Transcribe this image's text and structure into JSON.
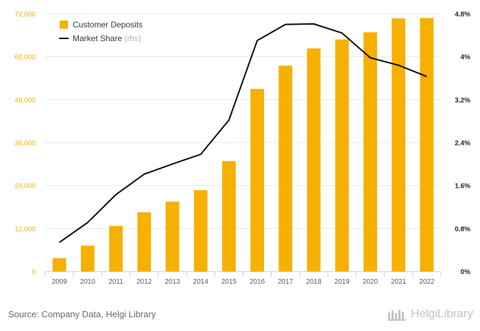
{
  "chart_data": {
    "type": "bar",
    "categories": [
      "2009",
      "2010",
      "2011",
      "2012",
      "2013",
      "2014",
      "2015",
      "2016",
      "2017",
      "2018",
      "2019",
      "2020",
      "2021",
      "2022"
    ],
    "series": [
      {
        "name": "Customer Deposits",
        "type": "bar",
        "axis": "left",
        "color": "#f5b000",
        "values": [
          3700,
          7200,
          12700,
          16500,
          19500,
          22700,
          30800,
          51000,
          57500,
          62300,
          64800,
          66800,
          70700,
          70800
        ]
      },
      {
        "name": "Market Share",
        "type": "line",
        "axis": "right",
        "color": "#000000",
        "values": [
          0.54,
          0.91,
          1.43,
          1.81,
          2.0,
          2.18,
          2.82,
          4.3,
          4.6,
          4.61,
          4.44,
          3.98,
          3.84,
          3.63
        ]
      }
    ],
    "left_axis": {
      "min": 0,
      "max": 72000,
      "ticks": [
        0,
        12000,
        24000,
        36000,
        48000,
        60000,
        72000
      ],
      "tick_labels": [
        "0",
        "12,000",
        "24,000",
        "36,000",
        "48,000",
        "60,000",
        "72,000"
      ],
      "label_color": "#f5b000"
    },
    "right_axis": {
      "min": 0,
      "max": 4.8,
      "unit": "%",
      "ticks": [
        0,
        0.8,
        1.6,
        2.4,
        3.2,
        4,
        4.8
      ],
      "tick_labels": [
        "0%",
        "0.8%",
        "1.6%",
        "2.4%",
        "3.2%",
        "4%",
        "4.8%"
      ]
    },
    "legend": {
      "position": "top-left",
      "items": [
        {
          "label": "Customer Deposits",
          "suffix": "",
          "symbol": "square",
          "color": "#f5b000"
        },
        {
          "label": "Market Share",
          "suffix": "(rhs)",
          "symbol": "line",
          "color": "#000000"
        }
      ]
    },
    "grid": "horizontal",
    "title": "",
    "xlabel": "",
    "ylabel": ""
  },
  "footer": {
    "source": "Source: Company Data, Helgi Library",
    "brand": "HelgiLibrary"
  }
}
